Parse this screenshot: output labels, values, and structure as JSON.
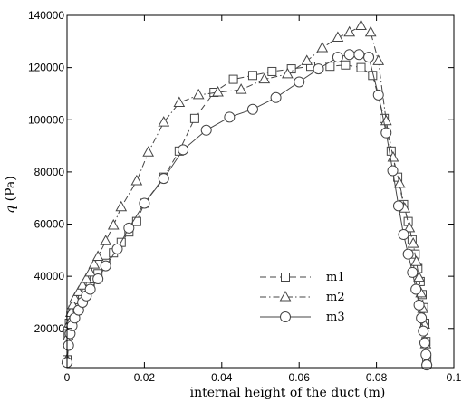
{
  "chart_data": {
    "type": "line",
    "title": "",
    "xlabel": "internal height of the duct (m)",
    "ylabel_symbol": "q",
    "ylabel_unit": "(Pa)",
    "xlim": [
      0,
      0.1
    ],
    "ylim": [
      5000,
      140000
    ],
    "xticks": [
      0,
      0.02,
      0.04,
      0.06,
      0.08,
      0.1
    ],
    "xtick_labels": [
      "0",
      "0.02",
      "0.04",
      "0.06",
      "0.08",
      "0.1"
    ],
    "yticks": [
      20000,
      40000,
      60000,
      80000,
      100000,
      120000,
      140000
    ],
    "ytick_labels": [
      "20000",
      "40000",
      "60000",
      "80000",
      "100000",
      "120000",
      "140000"
    ],
    "grid": false,
    "legend_position": "lower-right",
    "series": [
      {
        "name": "m1",
        "marker": "square",
        "line_style": "dashed",
        "x": [
          0,
          0.0003,
          0.0006,
          0.001,
          0.0015,
          0.002,
          0.003,
          0.004,
          0.005,
          0.006,
          0.007,
          0.008,
          0.01,
          0.012,
          0.014,
          0.016,
          0.018,
          0.02,
          0.025,
          0.029,
          0.033,
          0.038,
          0.043,
          0.048,
          0.053,
          0.058,
          0.063,
          0.068,
          0.072,
          0.076,
          0.079,
          0.082,
          0.0838,
          0.0855,
          0.087,
          0.0882,
          0.0892,
          0.09,
          0.0907,
          0.0913,
          0.0918,
          0.0922,
          0.0925,
          0.0928,
          0.093
        ],
        "y": [
          8000,
          18000,
          22000,
          25000,
          27000,
          29000,
          31000,
          33000,
          35000,
          37000,
          39000,
          41000,
          45000,
          49000,
          53000,
          57000,
          61000,
          68000,
          78000,
          88000,
          100500,
          110500,
          115500,
          117000,
          118500,
          119500,
          120500,
          120500,
          121000,
          120000,
          117000,
          100500,
          88000,
          78000,
          67500,
          61000,
          54000,
          48500,
          43000,
          38000,
          33000,
          28000,
          22000,
          15000,
          8000
        ]
      },
      {
        "name": "m2",
        "marker": "triangle",
        "line_style": "dash-dot",
        "x": [
          0,
          0.0003,
          0.0006,
          0.001,
          0.0015,
          0.002,
          0.003,
          0.004,
          0.005,
          0.006,
          0.007,
          0.008,
          0.01,
          0.012,
          0.014,
          0.018,
          0.021,
          0.025,
          0.029,
          0.034,
          0.039,
          0.045,
          0.051,
          0.057,
          0.062,
          0.066,
          0.07,
          0.073,
          0.076,
          0.0785,
          0.0805,
          0.0825,
          0.0843,
          0.086,
          0.0873,
          0.0885,
          0.0895,
          0.0903,
          0.091,
          0.0915,
          0.092,
          0.0924,
          0.0927,
          0.093
        ],
        "y": [
          8000,
          17000,
          22000,
          26000,
          29000,
          31500,
          34000,
          36500,
          39000,
          41500,
          44500,
          47500,
          53500,
          59500,
          66500,
          76500,
          87500,
          99000,
          106500,
          109500,
          110500,
          111500,
          115500,
          117500,
          122500,
          127500,
          131500,
          133500,
          136000,
          133500,
          122500,
          99500,
          85500,
          75500,
          66000,
          58500,
          52500,
          45500,
          39500,
          33500,
          27500,
          21500,
          14000,
          7500
        ]
      },
      {
        "name": "m3",
        "marker": "circle",
        "line_style": "solid",
        "x": [
          0,
          0.0004,
          0.0008,
          0.0013,
          0.002,
          0.003,
          0.004,
          0.005,
          0.006,
          0.008,
          0.01,
          0.013,
          0.016,
          0.02,
          0.025,
          0.03,
          0.036,
          0.042,
          0.048,
          0.054,
          0.06,
          0.065,
          0.07,
          0.073,
          0.0755,
          0.078,
          0.0805,
          0.0825,
          0.0842,
          0.0857,
          0.087,
          0.0882,
          0.0893,
          0.0902,
          0.091,
          0.0916,
          0.0921,
          0.0925,
          0.0928,
          0.093
        ],
        "y": [
          7000,
          13500,
          18000,
          21000,
          24000,
          27000,
          30000,
          32500,
          35000,
          39000,
          44000,
          50500,
          58500,
          68000,
          77500,
          88500,
          96000,
          101000,
          104000,
          108500,
          114500,
          119500,
          124000,
          125000,
          125000,
          124000,
          109500,
          95000,
          80500,
          67000,
          56000,
          48500,
          41500,
          35000,
          29000,
          24000,
          19000,
          14500,
          10000,
          6000
        ]
      }
    ]
  }
}
